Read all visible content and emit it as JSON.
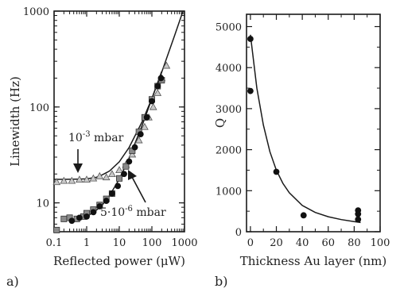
{
  "colors": {
    "ink": "#1a1a1a",
    "triangle_fill": "#c8c8c8",
    "square_fill": "#8a8a8a",
    "dot_fill": "#111111"
  },
  "chart_data": [
    {
      "panel_label": "a)",
      "type": "scatter",
      "xlabel": "Reflected power (μW)",
      "ylabel": "Linewidth (Hz)",
      "xscale": "log",
      "yscale": "log",
      "xlim": [
        0.1,
        1000
      ],
      "ylim": [
        5,
        1000
      ],
      "x_ticks": [
        {
          "value": 0.1,
          "label": "0.1"
        },
        {
          "value": 1,
          "label": "1"
        },
        {
          "value": 10,
          "label": "10"
        },
        {
          "value": 100,
          "label": "100"
        },
        {
          "value": 1000,
          "label": "1000"
        }
      ],
      "y_ticks": [
        {
          "value": 10,
          "label": "10"
        },
        {
          "value": 100,
          "label": "100"
        },
        {
          "value": 1000,
          "label": "1000"
        }
      ],
      "annotations": [
        {
          "text_base": "10",
          "text_sup": "-3",
          "text_tail": " mbar",
          "target": "upper-curve"
        },
        {
          "text_base": "5·10",
          "text_sup": "-6",
          "text_tail": " mbar",
          "target": "lower-curve"
        }
      ],
      "series": [
        {
          "marker": "triangle",
          "points": [
            [
              0.12,
              16.5
            ],
            [
              0.2,
              17
            ],
            [
              0.35,
              17
            ],
            [
              0.6,
              17.5
            ],
            [
              1,
              17.5
            ],
            [
              1.6,
              18
            ],
            [
              2.5,
              19
            ],
            [
              4,
              18.5
            ],
            [
              6,
              20
            ],
            [
              10,
              22
            ],
            [
              16,
              25
            ],
            [
              25,
              32
            ],
            [
              40,
              45
            ],
            [
              60,
              62
            ],
            [
              80,
              78
            ],
            [
              110,
              100
            ],
            [
              150,
              140
            ],
            [
              200,
              200
            ],
            [
              280,
              270
            ]
          ]
        },
        {
          "marker": "square",
          "points": [
            [
              0.12,
              5.2
            ],
            [
              0.2,
              6.8
            ],
            [
              0.3,
              7
            ],
            [
              0.5,
              6.8
            ],
            [
              0.8,
              7.2
            ],
            [
              1,
              7.8
            ],
            [
              1.6,
              8.5
            ],
            [
              2.5,
              9.5
            ],
            [
              4,
              11
            ],
            [
              6,
              12.5
            ],
            [
              10,
              18
            ],
            [
              16,
              24
            ],
            [
              25,
              35
            ],
            [
              40,
              55
            ],
            [
              60,
              78
            ],
            [
              100,
              120
            ],
            [
              150,
              165
            ],
            [
              200,
              190
            ]
          ]
        },
        {
          "marker": "dot",
          "points": [
            [
              0.35,
              6.5
            ],
            [
              0.6,
              7
            ],
            [
              1,
              7.2
            ],
            [
              1.6,
              8
            ],
            [
              2.5,
              9.2
            ],
            [
              4,
              10.5
            ],
            [
              6,
              12.5
            ],
            [
              9,
              15
            ],
            [
              14,
              20
            ],
            [
              20,
              27
            ],
            [
              30,
              38
            ],
            [
              45,
              52
            ],
            [
              70,
              78
            ],
            [
              100,
              115
            ],
            [
              150,
              165
            ],
            [
              190,
              200
            ]
          ]
        },
        {
          "marker": "curve-upper",
          "points": [
            [
              0.1,
              17.6
            ],
            [
              0.2,
              17.6
            ],
            [
              0.5,
              17.7
            ],
            [
              1,
              17.8
            ],
            [
              2,
              18.5
            ],
            [
              3,
              19.6
            ],
            [
              5,
              21.5
            ],
            [
              10,
              26.8
            ],
            [
              20,
              37.8
            ],
            [
              50,
              70
            ],
            [
              100,
              123
            ],
            [
              200,
              230
            ],
            [
              500,
              560
            ],
            [
              1000,
              1110
            ]
          ]
        },
        {
          "marker": "curve-lower",
          "points": [
            [
              0.3,
              6.45
            ],
            [
              0.5,
              6.65
            ],
            [
              1,
              7.2
            ],
            [
              2,
              8.4
            ],
            [
              3,
              9.5
            ],
            [
              5,
              11.9
            ],
            [
              10,
              17.7
            ],
            [
              20,
              29.2
            ],
            [
              50,
              64
            ],
            [
              100,
              122
            ],
            [
              200,
              235
            ]
          ]
        }
      ]
    },
    {
      "panel_label": "b)",
      "type": "scatter",
      "xlabel": "Thickness Au layer (nm)",
      "ylabel": "Q",
      "xlim": [
        -3,
        100
      ],
      "ylim": [
        0,
        5300
      ],
      "x_ticks": [
        {
          "value": 0,
          "label": "0"
        },
        {
          "value": 20,
          "label": "20"
        },
        {
          "value": 40,
          "label": "40"
        },
        {
          "value": 60,
          "label": "60"
        },
        {
          "value": 80,
          "label": "80"
        },
        {
          "value": 100,
          "label": "100"
        }
      ],
      "y_ticks": [
        {
          "value": 0,
          "label": "0"
        },
        {
          "value": 1000,
          "label": "1000"
        },
        {
          "value": 2000,
          "label": "2000"
        },
        {
          "value": 3000,
          "label": "3000"
        },
        {
          "value": 4000,
          "label": "4000"
        },
        {
          "value": 5000,
          "label": "5000"
        }
      ],
      "series": [
        {
          "marker": "dot",
          "points": [
            [
              0,
              4700
            ],
            [
              0,
              3430
            ],
            [
              20,
              1460
            ],
            [
              41,
              400
            ],
            [
              83,
              520
            ],
            [
              83,
              430
            ],
            [
              83,
              300
            ]
          ]
        },
        {
          "marker": "curve",
          "points": [
            [
              0,
              4800
            ],
            [
              5,
              3500
            ],
            [
              10,
              2600
            ],
            [
              15,
              1950
            ],
            [
              20,
              1500
            ],
            [
              25,
              1180
            ],
            [
              30,
              950
            ],
            [
              40,
              640
            ],
            [
              50,
              470
            ],
            [
              60,
              365
            ],
            [
              70,
              295
            ],
            [
              80,
              245
            ],
            [
              85,
              225
            ]
          ]
        }
      ]
    }
  ]
}
